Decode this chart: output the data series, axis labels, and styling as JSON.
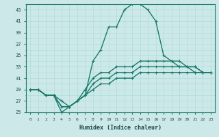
{
  "xlabel": "Humidex (Indice chaleur)",
  "ylabel": "",
  "background_color": "#cce8e8",
  "line_color": "#1a7a6a",
  "xlim": [
    -0.5,
    23.5
  ],
  "ylim": [
    25,
    44
  ],
  "xticks": [
    0,
    1,
    2,
    3,
    4,
    5,
    6,
    7,
    8,
    9,
    10,
    11,
    12,
    13,
    14,
    15,
    16,
    17,
    18,
    19,
    20,
    21,
    22,
    23
  ],
  "yticks": [
    25,
    27,
    29,
    31,
    33,
    35,
    37,
    39,
    41,
    43
  ],
  "series": [
    {
      "x": [
        0,
        1,
        2,
        3,
        4,
        5,
        6,
        7,
        8,
        9,
        10,
        11,
        12,
        13,
        14,
        15,
        16,
        17,
        18,
        19,
        20,
        21,
        22,
        23
      ],
      "y": [
        29,
        29,
        28,
        28,
        25,
        26,
        27,
        28,
        34,
        36,
        40,
        40,
        43,
        44,
        44,
        43,
        41,
        35,
        34,
        33,
        33,
        32,
        32,
        32
      ],
      "marker": "+",
      "markersize": 3,
      "linewidth": 1.0,
      "linestyle": "-"
    },
    {
      "x": [
        0,
        1,
        2,
        3,
        4,
        5,
        6,
        7,
        8,
        9,
        10,
        11,
        12,
        13,
        14,
        15,
        16,
        17,
        18,
        19,
        20,
        21,
        22,
        23
      ],
      "y": [
        29,
        29,
        28,
        28,
        26,
        26,
        27,
        29,
        31,
        32,
        32,
        33,
        33,
        33,
        34,
        34,
        34,
        34,
        34,
        34,
        33,
        33,
        32,
        32
      ],
      "marker": "+",
      "markersize": 3,
      "linewidth": 1.0,
      "linestyle": "-"
    },
    {
      "x": [
        0,
        1,
        2,
        3,
        4,
        5,
        6,
        7,
        8,
        9,
        10,
        11,
        12,
        13,
        14,
        15,
        16,
        17,
        18,
        19,
        20,
        21,
        22,
        23
      ],
      "y": [
        29,
        29,
        28,
        28,
        26,
        26,
        27,
        28,
        30,
        31,
        31,
        32,
        32,
        32,
        33,
        33,
        33,
        33,
        33,
        33,
        33,
        33,
        32,
        32
      ],
      "marker": "+",
      "markersize": 3,
      "linewidth": 1.0,
      "linestyle": "-"
    },
    {
      "x": [
        0,
        1,
        2,
        3,
        4,
        5,
        6,
        7,
        8,
        9,
        10,
        11,
        12,
        13,
        14,
        15,
        16,
        17,
        18,
        19,
        20,
        21,
        22,
        23
      ],
      "y": [
        29,
        29,
        28,
        28,
        27,
        26,
        27,
        28,
        29,
        30,
        30,
        31,
        31,
        31,
        32,
        32,
        32,
        32,
        32,
        32,
        32,
        32,
        32,
        32
      ],
      "marker": "+",
      "markersize": 3,
      "linewidth": 1.0,
      "linestyle": "-"
    }
  ]
}
